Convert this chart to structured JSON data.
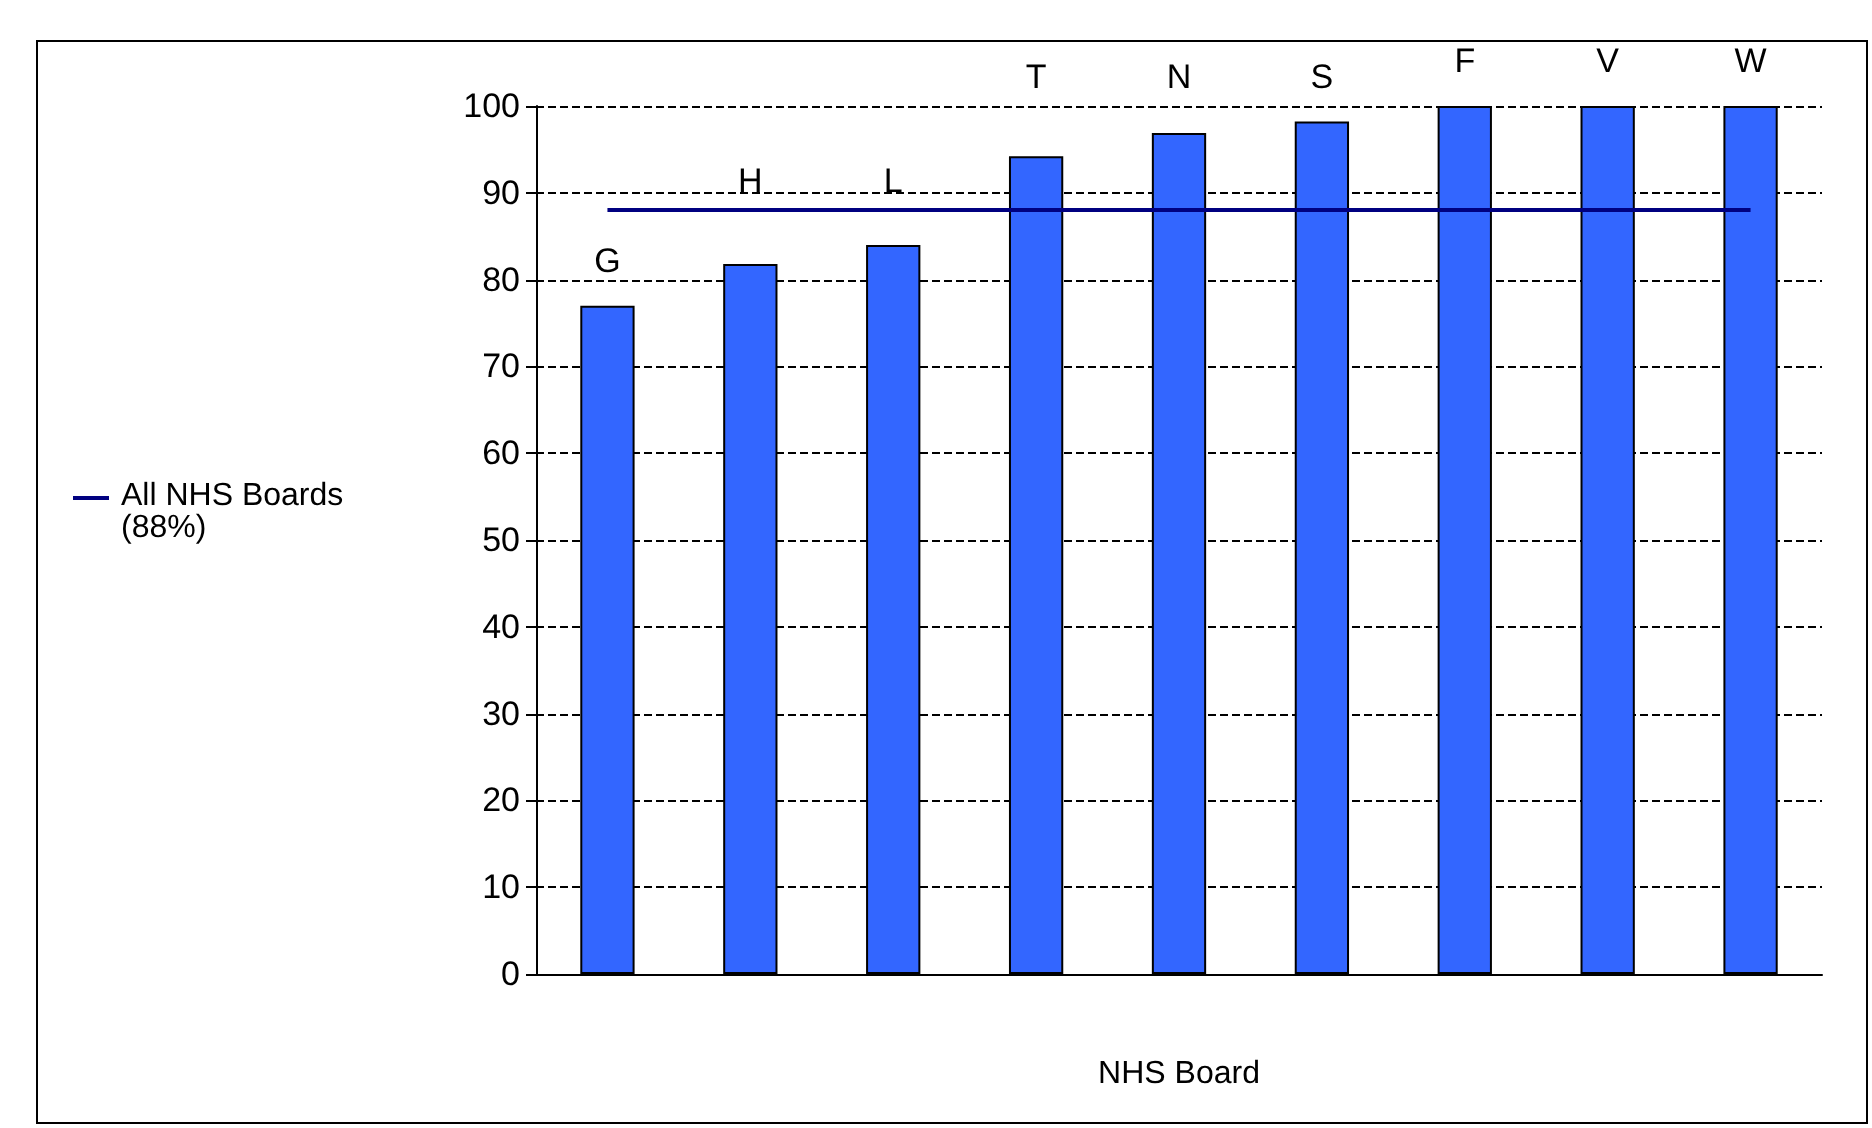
{
  "chart_data": {
    "type": "bar",
    "xlabel": "NHS Board",
    "categories": [
      "G",
      "H",
      "L",
      "T",
      "N",
      "S",
      "F",
      "V",
      "W"
    ],
    "values": [
      77,
      81.8,
      84,
      94.2,
      96.9,
      98.2,
      100,
      100,
      100
    ],
    "color": "#3366ff",
    "ylim": [
      0,
      100
    ],
    "yticks": [
      0,
      10,
      20,
      30,
      40,
      50,
      60,
      70,
      80,
      90,
      100
    ],
    "grid": "y",
    "line_style": "dashed",
    "ref_lines": [
      {
        "axis": "y",
        "value": 88,
        "label": "All NHS Boards\n(88%)",
        "color": "#000080"
      }
    ]
  }
}
